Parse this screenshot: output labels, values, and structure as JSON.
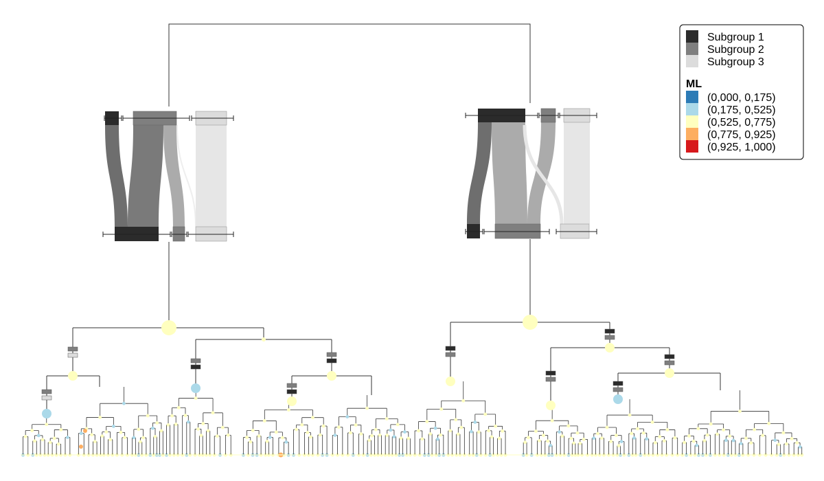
{
  "legend": {
    "subgroups": [
      {
        "label": "Subgroup 1",
        "color": "#2b2b2b"
      },
      {
        "label": "Subgroup 2",
        "color": "#7f7f7f"
      },
      {
        "label": "Subgroup 3",
        "color": "#dcdcdc"
      }
    ],
    "ml_title": "ML",
    "ml_bins": [
      {
        "label": "(0,000, 0,175)",
        "color": "#2c7bb6"
      },
      {
        "label": "(0,175, 0,525)",
        "color": "#abd9e9"
      },
      {
        "label": "(0,525, 0,775)",
        "color": "#ffffbf"
      },
      {
        "label": "(0,775, 0,925)",
        "color": "#fdae61"
      },
      {
        "label": "(0,925, 1,000)",
        "color": "#d7191c"
      }
    ]
  },
  "colors": {
    "line": "#333333",
    "flow_dark": "#6e6e6e",
    "flow_mid": "#ababab",
    "flow_light": "#e6e6e6",
    "node_yellow": "#ffffbf",
    "node_blue": "#abd9e9",
    "node_orange": "#fdae61"
  }
}
